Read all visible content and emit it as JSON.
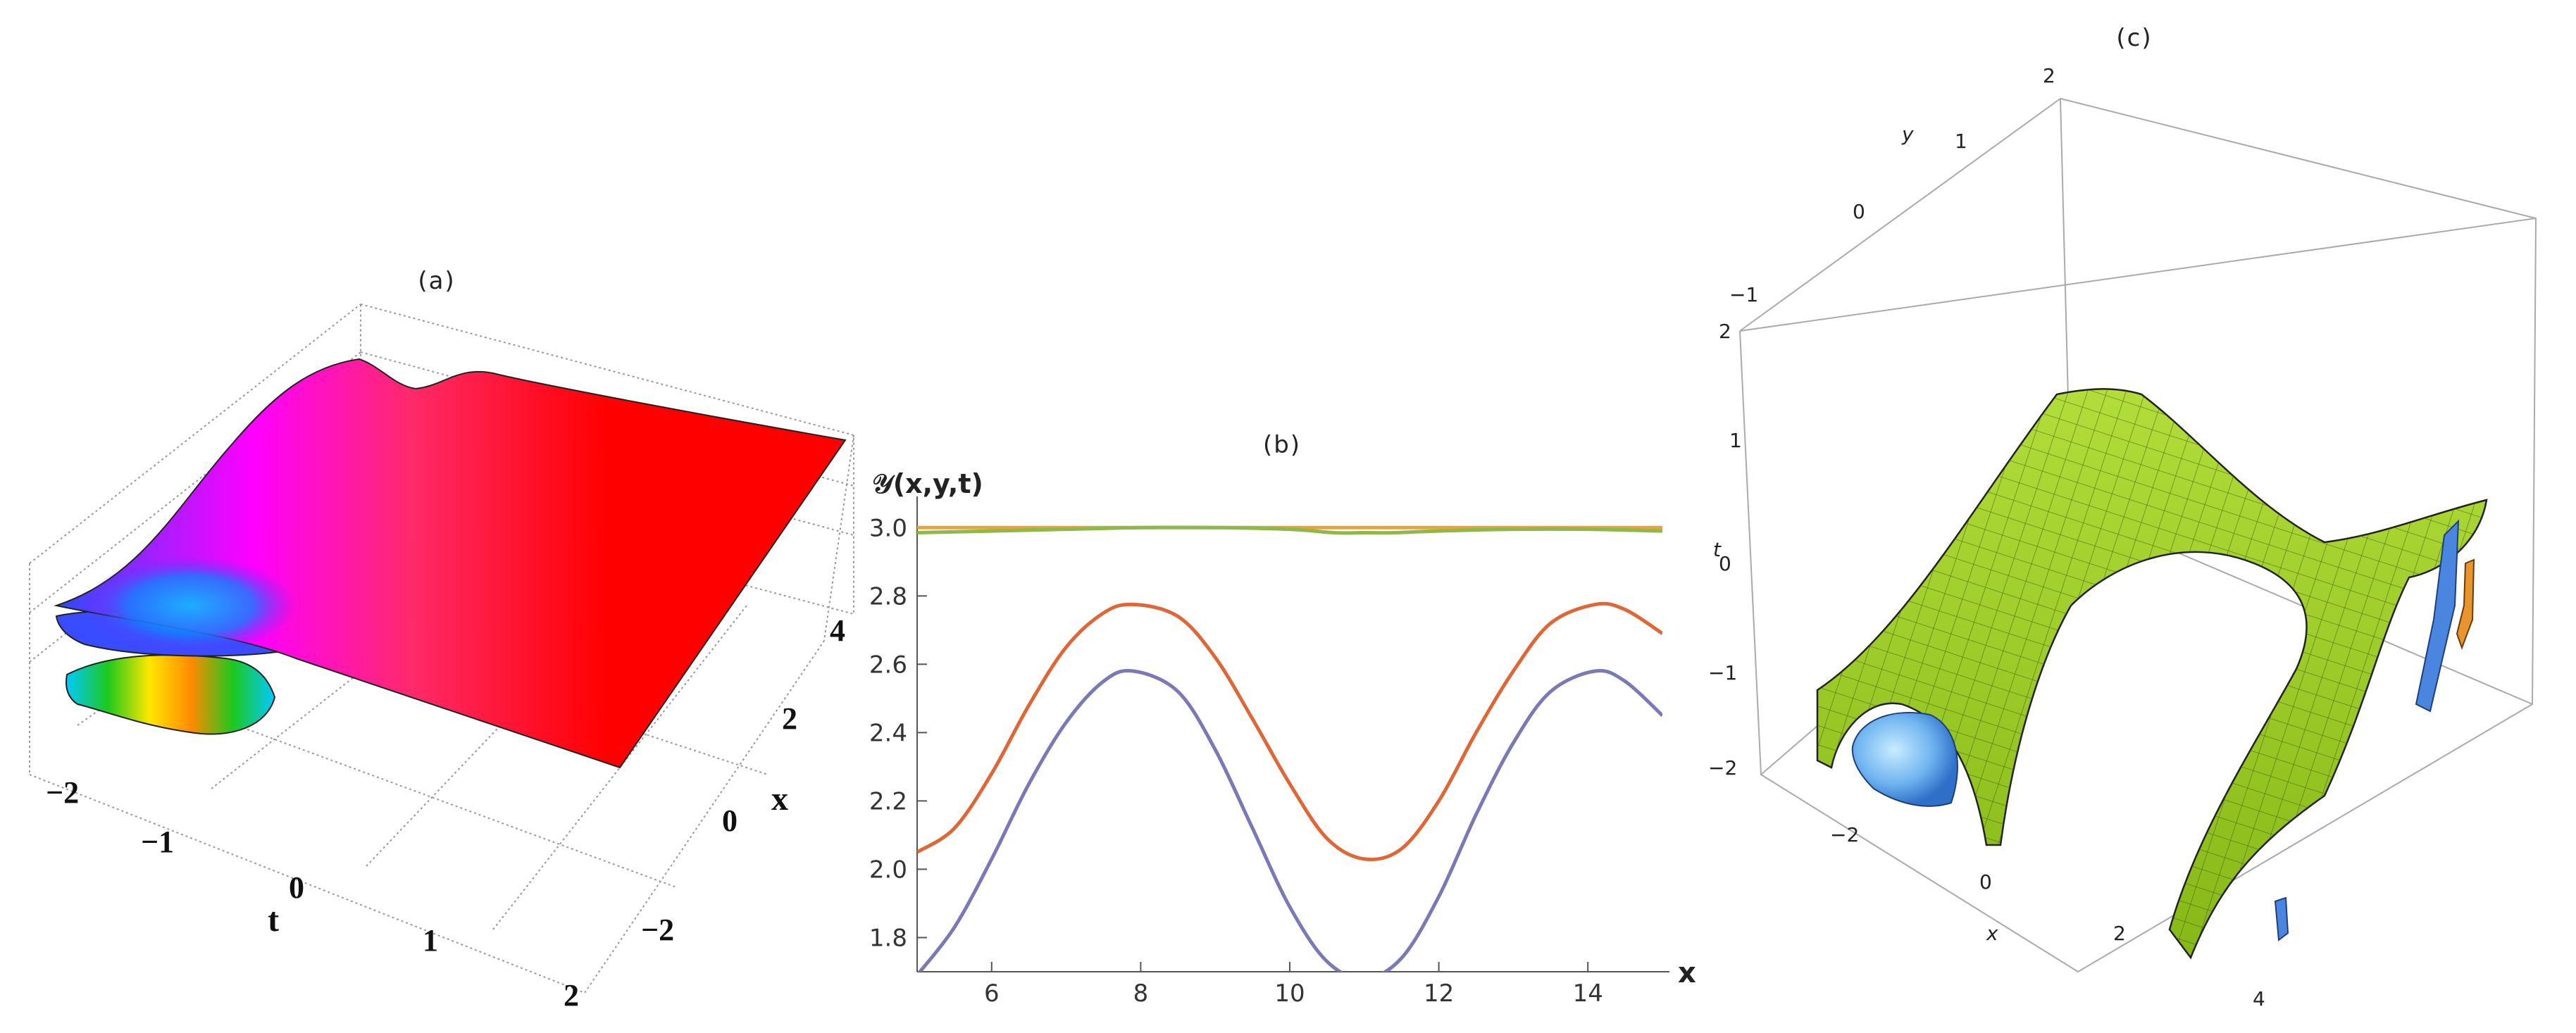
{
  "panels": {
    "a": {
      "label": "(a)"
    },
    "b": {
      "label": "(b)"
    },
    "c": {
      "label": "(c)"
    }
  },
  "chart_data": [
    {
      "panel": "(a)",
      "type": "surface3d",
      "axis_labels": {
        "x": "x",
        "t": "t"
      },
      "x_ticks": [
        "−2",
        "0",
        "2",
        "4"
      ],
      "t_ticks": [
        "−2",
        "−1",
        "0",
        "1",
        "2"
      ],
      "colors": {
        "main_surface": "#ff0000",
        "magenta": "#ff00ff",
        "blue": "#2a4cff",
        "cyan": "#00c8ff",
        "yellow": "#ffe600",
        "green": "#1ec81e"
      }
    },
    {
      "panel": "(b)",
      "type": "line",
      "ylabel": "𝒴(x,y,t)",
      "xlabel": "x",
      "xlim": [
        5,
        15
      ],
      "ylim": [
        1.7,
        3.05
      ],
      "x_ticks": [
        6,
        8,
        10,
        12,
        14
      ],
      "y_ticks": [
        "1.8",
        "2.0",
        "2.2",
        "2.4",
        "2.6",
        "2.8",
        "3.0"
      ],
      "series": [
        {
          "color": "#e8a33a",
          "x": [
            5,
            7,
            9,
            11,
            13,
            15
          ],
          "y": [
            3.0,
            3.0,
            3.0,
            3.0,
            3.0,
            3.0
          ]
        },
        {
          "color": "#8db84a",
          "x": [
            5,
            6,
            7,
            8,
            9,
            10,
            10.6,
            11,
            11.4,
            12,
            13,
            14,
            15
          ],
          "y": [
            2.985,
            2.99,
            2.995,
            3.0,
            3.0,
            2.995,
            2.985,
            2.985,
            2.985,
            2.99,
            2.995,
            2.995,
            2.99
          ]
        },
        {
          "color": "#e06636",
          "x": [
            5,
            5.5,
            6,
            6.5,
            7,
            7.5,
            7.9,
            8.5,
            9,
            9.5,
            10,
            10.5,
            11,
            11.5,
            12,
            12.5,
            13,
            13.5,
            14.1,
            14.5,
            15
          ],
          "y": [
            2.05,
            2.12,
            2.28,
            2.48,
            2.65,
            2.75,
            2.775,
            2.74,
            2.62,
            2.44,
            2.25,
            2.09,
            2.03,
            2.06,
            2.2,
            2.4,
            2.58,
            2.72,
            2.775,
            2.76,
            2.69
          ]
        },
        {
          "color": "#7b78b8",
          "x": [
            5,
            5.5,
            6,
            6.5,
            7,
            7.5,
            7.9,
            8.5,
            9,
            9.5,
            10,
            10.5,
            11,
            11.5,
            12,
            12.5,
            13,
            13.5,
            14.1,
            14.5,
            15
          ],
          "y": [
            1.69,
            1.83,
            2.03,
            2.25,
            2.43,
            2.55,
            2.58,
            2.52,
            2.35,
            2.12,
            1.89,
            1.73,
            1.68,
            1.74,
            1.92,
            2.16,
            2.37,
            2.52,
            2.58,
            2.55,
            2.45
          ]
        }
      ]
    },
    {
      "panel": "(c)",
      "type": "surface3d",
      "axis_labels": {
        "x": "x",
        "y": "y",
        "t": "t"
      },
      "x_ticks": [
        "−2",
        "0",
        "2",
        "4"
      ],
      "y_ticks": [
        "−1",
        "0",
        "1",
        "2"
      ],
      "t_ticks": [
        "−2",
        "−1",
        "0",
        "1",
        "2"
      ],
      "colors": {
        "green_surface": "#9acd1e",
        "blue_blob": "#6fb4f0",
        "orange_piece": "#e8952e"
      }
    }
  ]
}
